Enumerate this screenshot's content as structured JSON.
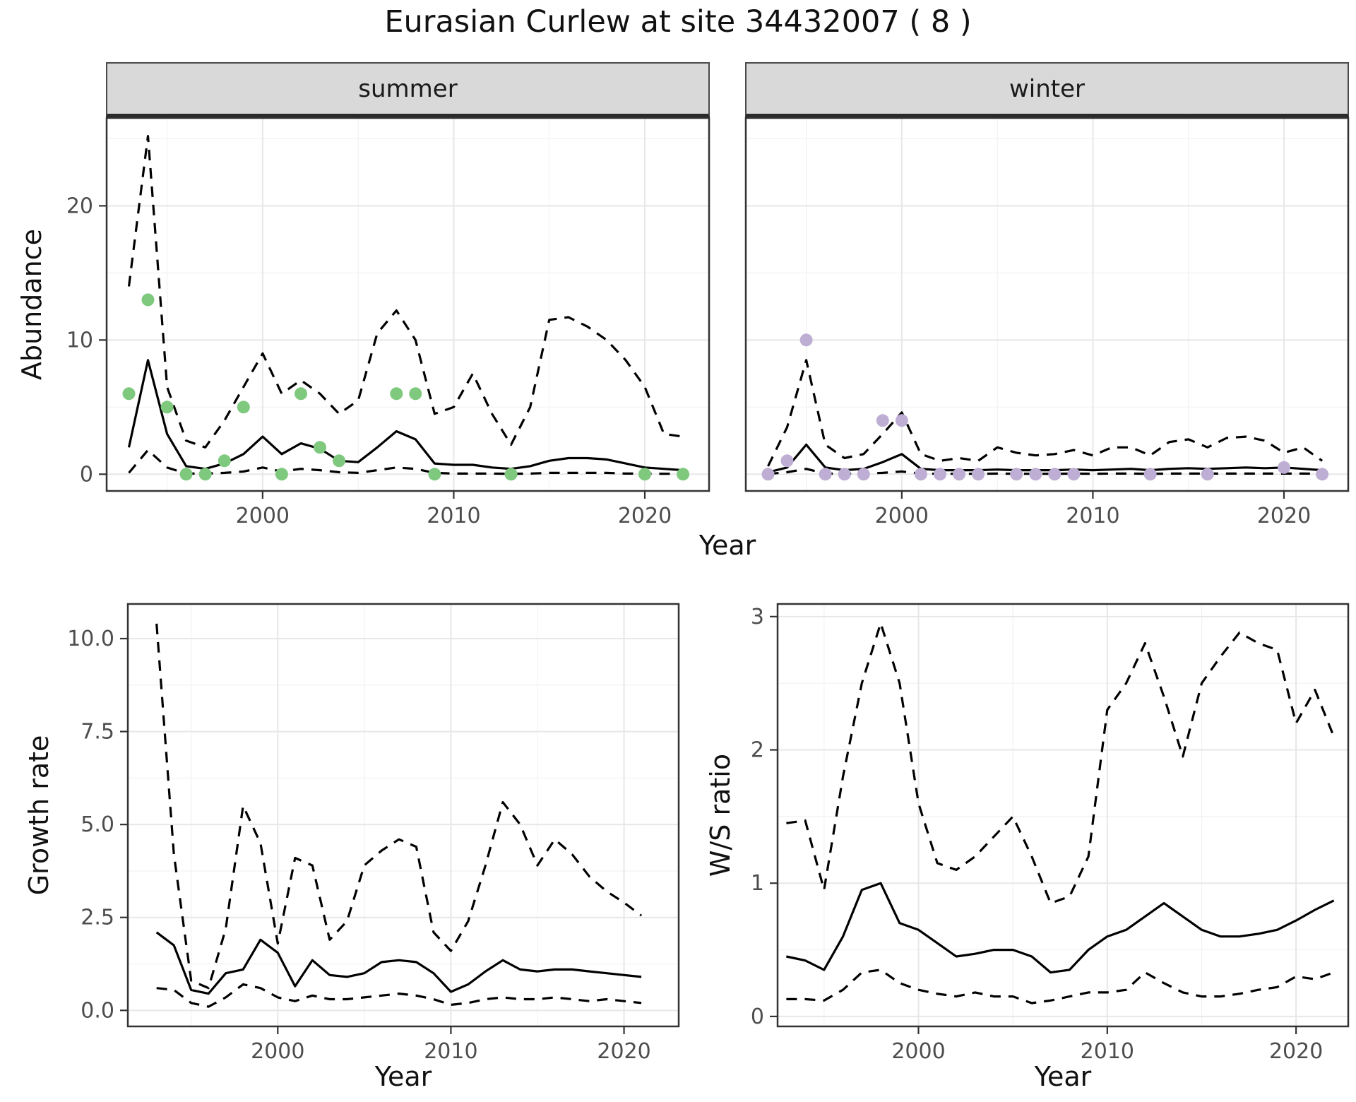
{
  "title": "Eurasian Curlew at site 34432007 ( 8 )",
  "facets": [
    "summer",
    "winter"
  ],
  "axes": {
    "abundance": "Abundance",
    "year": "Year",
    "growth_rate": "Growth rate",
    "ws_ratio": "W/S ratio"
  },
  "theme": {
    "line": "#000000",
    "summer_points": "#7FC97F",
    "winter_points": "#BEAED4",
    "strip_bg": "#D9D9D9",
    "grid_major": "#E7E7E7",
    "grid_minor": "#F2F2F2",
    "panel_border": "#333333",
    "tick_text": "#4d4d4d"
  },
  "chart_data": [
    {
      "id": "abundance-summer",
      "type": "line",
      "facet": "summer",
      "xlabel": "Year",
      "ylabel": "Abundance",
      "xlim": [
        1991.8,
        2023.4
      ],
      "ylim": [
        -1.3,
        26.6
      ],
      "xticks": [
        2000,
        2010,
        2020
      ],
      "yticks": [
        0,
        10,
        20
      ],
      "xtick_labels": [
        "2000",
        "2010",
        "2020"
      ],
      "ytick_labels": [
        "0",
        "10",
        "20"
      ],
      "show_y_tick_labels": true,
      "x": [
        1993,
        1994,
        1995,
        1996,
        1997,
        1998,
        1999,
        2000,
        2001,
        2002,
        2003,
        2004,
        2005,
        2006,
        2007,
        2008,
        2009,
        2010,
        2011,
        2012,
        2013,
        2014,
        2015,
        2016,
        2017,
        2018,
        2019,
        2020,
        2021,
        2022
      ],
      "series": [
        {
          "name": "fit",
          "style": "solid",
          "values": [
            2.0,
            8.5,
            3.0,
            0.6,
            0.4,
            0.8,
            1.5,
            2.8,
            1.5,
            2.3,
            1.9,
            1.0,
            0.9,
            2.0,
            3.2,
            2.6,
            0.8,
            0.7,
            0.7,
            0.5,
            0.4,
            0.6,
            1.0,
            1.2,
            1.2,
            1.1,
            0.8,
            0.5,
            0.4,
            0.3
          ]
        },
        {
          "name": "upper95",
          "style": "dashed",
          "values": [
            14.0,
            25.2,
            6.5,
            2.5,
            2.0,
            4.0,
            6.5,
            9.0,
            6.0,
            7.0,
            6.0,
            4.5,
            5.5,
            10.5,
            12.2,
            10.0,
            4.5,
            5.0,
            7.5,
            4.5,
            2.2,
            5.0,
            11.5,
            11.7,
            11.0,
            10.0,
            8.5,
            6.5,
            3.0,
            2.8
          ]
        },
        {
          "name": "lower95",
          "style": "dashed",
          "values": [
            0.1,
            1.8,
            0.5,
            0.05,
            0.05,
            0.1,
            0.2,
            0.5,
            0.2,
            0.4,
            0.3,
            0.15,
            0.1,
            0.3,
            0.5,
            0.4,
            0.1,
            0.05,
            0.05,
            0.05,
            0.03,
            0.05,
            0.1,
            0.1,
            0.1,
            0.1,
            0.05,
            0.05,
            0.03,
            0.03
          ]
        }
      ],
      "points": {
        "color": "#7FC97F",
        "x": [
          1993,
          1994,
          1995,
          1996,
          1997,
          1998,
          1999,
          2001,
          2002,
          2003,
          2004,
          2007,
          2008,
          2009,
          2013,
          2020,
          2022
        ],
        "y": [
          6,
          13,
          5,
          0,
          0,
          1,
          5,
          0,
          6,
          2,
          1,
          6,
          6,
          0,
          0,
          0,
          0
        ]
      }
    },
    {
      "id": "abundance-winter",
      "type": "line",
      "facet": "winter",
      "xlabel": "Year",
      "ylabel": "Abundance",
      "xlim": [
        1991.8,
        2023.4
      ],
      "ylim": [
        -1.3,
        26.6
      ],
      "xticks": [
        2000,
        2010,
        2020
      ],
      "yticks": [
        0,
        10,
        20
      ],
      "xtick_labels": [
        "2000",
        "2010",
        "2020"
      ],
      "ytick_labels": [
        "0",
        "10",
        "20"
      ],
      "show_y_tick_labels": false,
      "x": [
        1993,
        1994,
        1995,
        1996,
        1997,
        1998,
        1999,
        2000,
        2001,
        2002,
        2003,
        2004,
        2005,
        2006,
        2007,
        2008,
        2009,
        2010,
        2011,
        2012,
        2013,
        2014,
        2015,
        2016,
        2017,
        2018,
        2019,
        2020,
        2021,
        2022
      ],
      "series": [
        {
          "name": "fit",
          "style": "solid",
          "values": [
            0.15,
            0.5,
            2.2,
            0.5,
            0.3,
            0.4,
            0.9,
            1.5,
            0.4,
            0.3,
            0.3,
            0.3,
            0.35,
            0.3,
            0.3,
            0.3,
            0.35,
            0.3,
            0.35,
            0.4,
            0.3,
            0.4,
            0.45,
            0.4,
            0.45,
            0.5,
            0.45,
            0.5,
            0.4,
            0.3
          ]
        },
        {
          "name": "upper95",
          "style": "dashed",
          "values": [
            0.6,
            3.5,
            8.5,
            2.2,
            1.2,
            1.5,
            3.0,
            4.6,
            1.5,
            1.0,
            1.2,
            1.0,
            2.0,
            1.6,
            1.4,
            1.5,
            1.8,
            1.4,
            2.0,
            2.0,
            1.4,
            2.4,
            2.6,
            2.0,
            2.7,
            2.8,
            2.5,
            1.6,
            2.0,
            1.0
          ]
        },
        {
          "name": "lower95",
          "style": "dashed",
          "values": [
            0.02,
            0.15,
            0.4,
            0.05,
            0.03,
            0.05,
            0.1,
            0.2,
            0.05,
            0.03,
            0.03,
            0.03,
            0.05,
            0.03,
            0.03,
            0.03,
            0.05,
            0.03,
            0.05,
            0.05,
            0.03,
            0.05,
            0.05,
            0.05,
            0.05,
            0.05,
            0.05,
            0.05,
            0.05,
            0.03
          ]
        }
      ],
      "points": {
        "color": "#BEAED4",
        "x": [
          1993,
          1994,
          1995,
          1996,
          1997,
          1998,
          1999,
          2000,
          2001,
          2002,
          2003,
          2004,
          2006,
          2007,
          2008,
          2009,
          2013,
          2016,
          2020,
          2022
        ],
        "y": [
          0,
          1,
          10,
          0,
          0,
          0,
          4,
          4,
          0,
          0,
          0,
          0,
          0,
          0,
          0,
          0,
          0,
          0,
          0.5,
          0
        ]
      }
    },
    {
      "id": "growth-rate",
      "type": "line",
      "facet": "",
      "xlabel": "Year",
      "ylabel": "Growth rate",
      "xlim": [
        1991.3,
        2023.2
      ],
      "ylim": [
        -0.45,
        10.95
      ],
      "xticks": [
        2000,
        2010,
        2020
      ],
      "yticks": [
        0,
        2.5,
        5,
        7.5,
        10
      ],
      "xtick_labels": [
        "2000",
        "2010",
        "2020"
      ],
      "ytick_labels": [
        "0.0",
        "2.5",
        "5.0",
        "7.5",
        "10.0"
      ],
      "show_y_tick_labels": true,
      "x": [
        1993,
        1994,
        1995,
        1996,
        1997,
        1998,
        1999,
        2000,
        2001,
        2002,
        2003,
        2004,
        2005,
        2006,
        2007,
        2008,
        2009,
        2010,
        2011,
        2012,
        2013,
        2014,
        2015,
        2016,
        2017,
        2018,
        2019,
        2020,
        2021
      ],
      "series": [
        {
          "name": "fit",
          "style": "solid",
          "values": [
            2.1,
            1.75,
            0.55,
            0.45,
            1.0,
            1.1,
            1.9,
            1.55,
            0.65,
            1.35,
            0.95,
            0.9,
            1.0,
            1.3,
            1.35,
            1.3,
            1.0,
            0.5,
            0.7,
            1.05,
            1.35,
            1.1,
            1.05,
            1.1,
            1.1,
            1.05,
            1.0,
            0.95,
            0.9
          ]
        },
        {
          "name": "upper95",
          "style": "dashed",
          "values": [
            10.4,
            4.2,
            0.8,
            0.6,
            2.2,
            5.5,
            4.5,
            1.8,
            4.1,
            3.9,
            1.9,
            2.4,
            3.9,
            4.3,
            4.6,
            4.4,
            2.1,
            1.6,
            2.4,
            3.9,
            5.6,
            5.0,
            3.9,
            4.6,
            4.2,
            3.6,
            3.2,
            2.9,
            2.55
          ]
        },
        {
          "name": "lower95",
          "style": "dashed",
          "values": [
            0.6,
            0.55,
            0.2,
            0.1,
            0.35,
            0.7,
            0.6,
            0.35,
            0.25,
            0.4,
            0.3,
            0.3,
            0.35,
            0.4,
            0.45,
            0.4,
            0.3,
            0.15,
            0.2,
            0.3,
            0.35,
            0.3,
            0.3,
            0.35,
            0.3,
            0.25,
            0.3,
            0.25,
            0.2
          ]
        }
      ],
      "points": null
    },
    {
      "id": "ws-ratio",
      "type": "line",
      "facet": "",
      "xlabel": "Year",
      "ylabel": "W/S ratio",
      "xlim": [
        1992.5,
        2022.8
      ],
      "ylim": [
        -0.08,
        3.1
      ],
      "xticks": [
        2000,
        2010,
        2020
      ],
      "yticks": [
        0,
        1,
        2,
        3
      ],
      "xtick_labels": [
        "2000",
        "2010",
        "2020"
      ],
      "ytick_labels": [
        "0",
        "1",
        "2",
        "3"
      ],
      "show_y_tick_labels": true,
      "x": [
        1993,
        1994,
        1995,
        1996,
        1997,
        1998,
        1999,
        2000,
        2001,
        2002,
        2003,
        2004,
        2005,
        2006,
        2007,
        2008,
        2009,
        2010,
        2011,
        2012,
        2013,
        2014,
        2015,
        2016,
        2017,
        2018,
        2019,
        2020,
        2021,
        2022
      ],
      "series": [
        {
          "name": "fit",
          "style": "solid",
          "values": [
            0.45,
            0.42,
            0.35,
            0.6,
            0.95,
            1.0,
            0.7,
            0.65,
            0.55,
            0.45,
            0.47,
            0.5,
            0.5,
            0.45,
            0.33,
            0.35,
            0.5,
            0.6,
            0.65,
            0.75,
            0.85,
            0.75,
            0.65,
            0.6,
            0.6,
            0.62,
            0.65,
            0.72,
            0.8,
            0.87
          ]
        },
        {
          "name": "upper95",
          "style": "dashed",
          "values": [
            1.45,
            1.47,
            0.95,
            1.8,
            2.5,
            2.95,
            2.5,
            1.6,
            1.15,
            1.1,
            1.2,
            1.35,
            1.5,
            1.2,
            0.85,
            0.9,
            1.2,
            2.3,
            2.5,
            2.8,
            2.4,
            1.95,
            2.5,
            2.7,
            2.88,
            2.8,
            2.75,
            2.2,
            2.45,
            2.1
          ]
        },
        {
          "name": "lower95",
          "style": "dashed",
          "values": [
            0.13,
            0.13,
            0.12,
            0.2,
            0.33,
            0.35,
            0.25,
            0.2,
            0.17,
            0.15,
            0.18,
            0.15,
            0.15,
            0.1,
            0.12,
            0.15,
            0.18,
            0.18,
            0.2,
            0.33,
            0.25,
            0.18,
            0.15,
            0.15,
            0.17,
            0.2,
            0.22,
            0.3,
            0.28,
            0.33
          ]
        }
      ],
      "points": null
    }
  ]
}
